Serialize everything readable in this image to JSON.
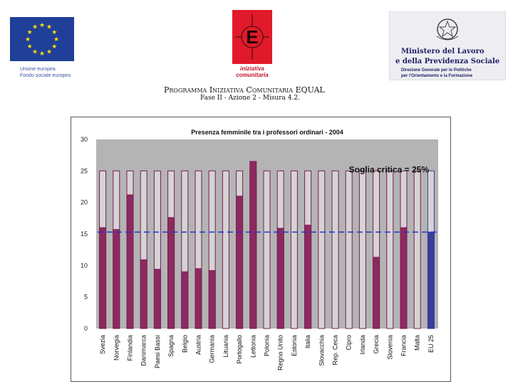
{
  "header": {
    "eu_logo": {
      "line1": "Unione europea",
      "line2": "Fondo sociale europeo"
    },
    "equal_logo": {
      "line1": "iniziativa",
      "line2": "comunitaria"
    },
    "ministry_logo": {
      "title_line1": "Ministero del Lavoro",
      "title_line2": "e della Previdenza Sociale",
      "sub_line1": "Direzione Generale per le Politiche",
      "sub_line2": "per l'Orientamento e la Formazione"
    },
    "programme_title": "Programma Iniziativa Comunitaria EQUAL",
    "programme_subtitle": "Fase II - Azione 2 - Misura 4.2."
  },
  "colors": {
    "plot_background": "#b4b4b4",
    "bar_outline": "#7a1c55",
    "bar_fill": "#8c2a60",
    "eu_bar_fill": "#3c3c9c",
    "dashed_line": "#2233cc",
    "eu_blue": "#1f3f99",
    "eu_star": "#ffdd00",
    "equal_red": "#e01a2a"
  },
  "chart_data": {
    "type": "bar",
    "title": "Presenza femminile tra i professori ordinari - 2004",
    "xlabel": "",
    "ylabel": "",
    "ylim": [
      0,
      30
    ],
    "yticks": [
      0,
      5,
      10,
      15,
      20,
      25,
      30
    ],
    "grid": false,
    "categories": [
      "Svezia",
      "Norvegia",
      "Finlandia",
      "Danimarca",
      "Paesi Bassi",
      "Spagna",
      "Belgio",
      "Austria",
      "Germania",
      "Lituania",
      "Portogallo",
      "Lettonia",
      "Polonia",
      "Regno Unito",
      "Estonia",
      "Italia",
      "Slovacchia",
      "Rep. Ceca",
      "Cipro",
      "Irlanda",
      "Grecia",
      "Slovenia",
      "Francia",
      "Malta",
      "EU 25"
    ],
    "threshold": {
      "value": 25,
      "label": "Soglia critica = 25%"
    },
    "reference_line": {
      "value": 15.3,
      "style": "dashed"
    },
    "values": [
      16,
      15.7,
      21.2,
      10.9,
      9.4,
      17.6,
      9,
      9.5,
      9.2,
      null,
      21,
      26.5,
      null,
      15.9,
      null,
      16.4,
      null,
      null,
      null,
      null,
      11.3,
      null,
      16,
      null,
      15.3
    ]
  }
}
